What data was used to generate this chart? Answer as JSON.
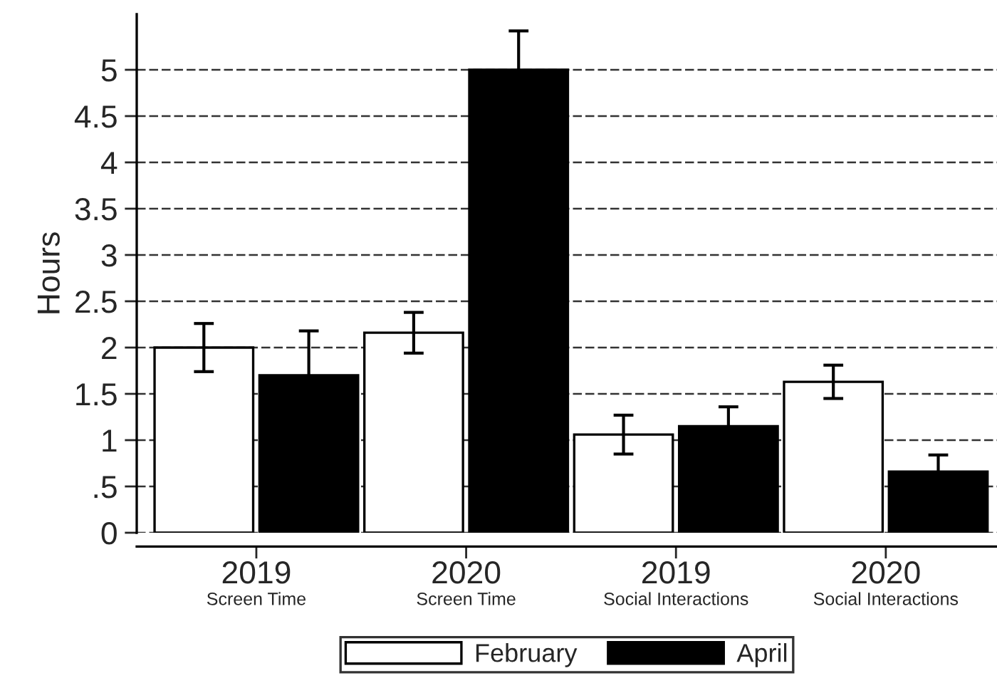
{
  "chart_data": {
    "type": "bar",
    "ylabel": "Hours",
    "categories": [
      "2019\nScreen Time",
      "2020\nScreen Time",
      "2019\nSocial Interactions",
      "2020\nSocial Interactions"
    ],
    "series": [
      {
        "name": "February",
        "color": "#ffffff",
        "values": [
          2.0,
          2.16,
          1.06,
          1.63
        ],
        "errors": [
          0.26,
          0.22,
          0.21,
          0.18
        ]
      },
      {
        "name": "April",
        "color": "#000000",
        "values": [
          1.7,
          5.0,
          1.15,
          0.66
        ],
        "errors": [
          0.48,
          0.42,
          0.21,
          0.18
        ]
      }
    ],
    "ylim": [
      0,
      5.6
    ],
    "yticks": [
      0,
      {
        "value": 0.5,
        "label": ".5"
      },
      1,
      1.5,
      2,
      2.5,
      3,
      3.5,
      4,
      4.5,
      5
    ],
    "grid": "y",
    "legend": "bottom"
  }
}
